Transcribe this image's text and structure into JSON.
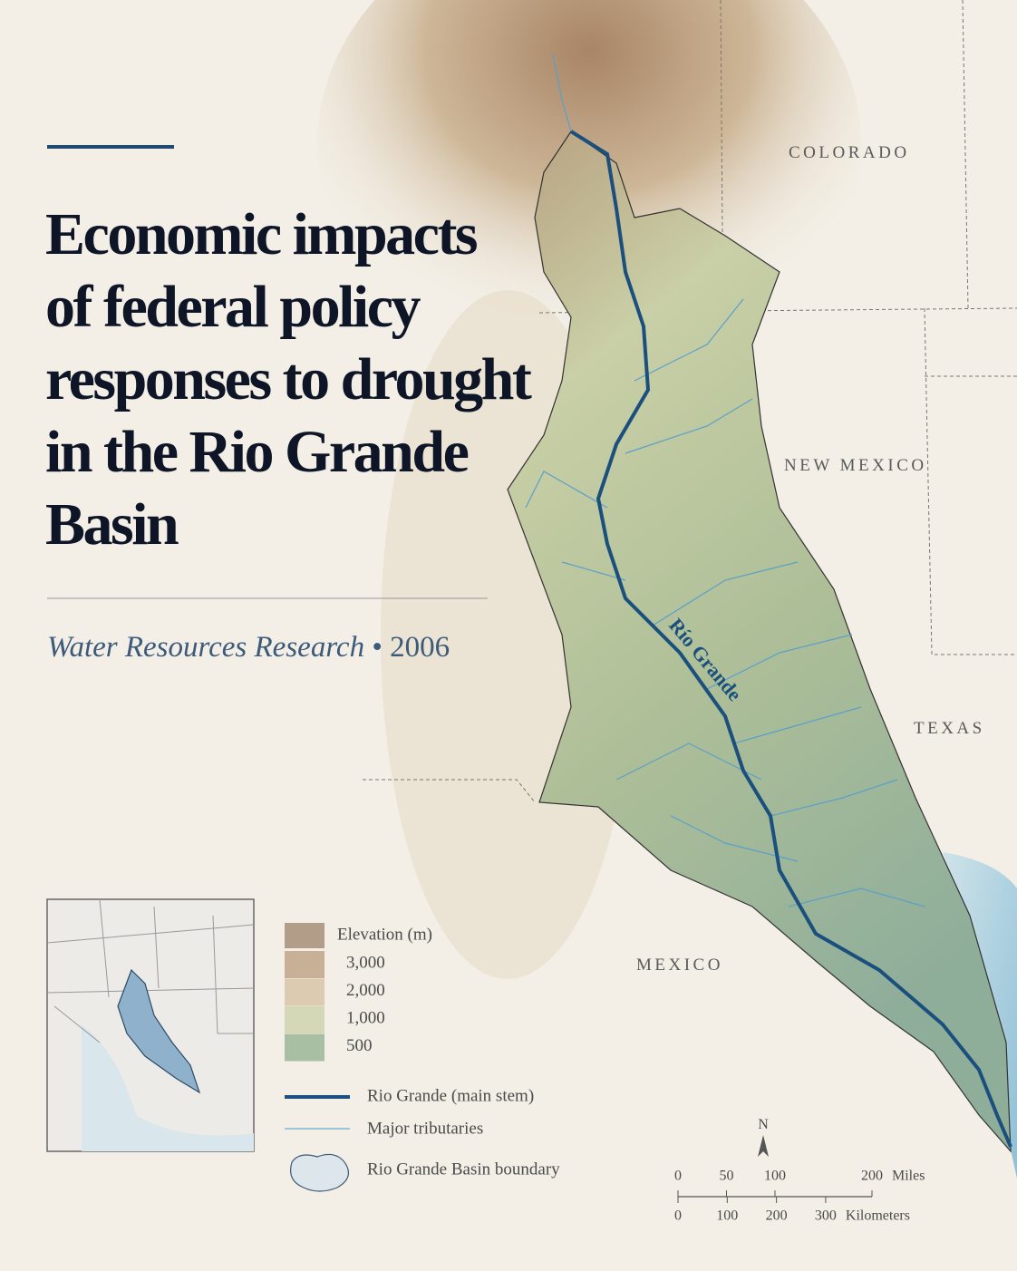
{
  "header": {
    "title_lines": [
      "Economic impacts",
      "of federal policy",
      "responses to drought",
      "in the Rio Grande",
      "Basin"
    ],
    "journal": "Water Resources Research",
    "separator": "•",
    "year": "2006"
  },
  "map_labels": {
    "colorado": "COLORADO",
    "new_mexico": "NEW MEXICO",
    "texas": "TEXAS",
    "mexico": "MEXICO",
    "river": "Río Grande"
  },
  "legend": {
    "elevation_title": "Elevation (m)",
    "elevation_classes": [
      {
        "value": 3000,
        "label": "3,000",
        "color": "#c8b096"
      },
      {
        "value": 2000,
        "label": "2,000",
        "color": "#dccbb0"
      },
      {
        "value": 1000,
        "label": "1,000",
        "color": "#d5d8b6"
      },
      {
        "value": 500,
        "label": "500",
        "color": "#a9bfa4"
      }
    ],
    "main_stem": "Rio Grande (main stem)",
    "tributaries": "Major tributaries",
    "boundary": "Rio Grande Basin boundary"
  },
  "scale_bar": {
    "north": "N",
    "miles": {
      "ticks": [
        0,
        50,
        100,
        200
      ],
      "unit": "Miles"
    },
    "kilometers": {
      "ticks": [
        0,
        100,
        200,
        300
      ],
      "unit": "Kilometers"
    }
  }
}
